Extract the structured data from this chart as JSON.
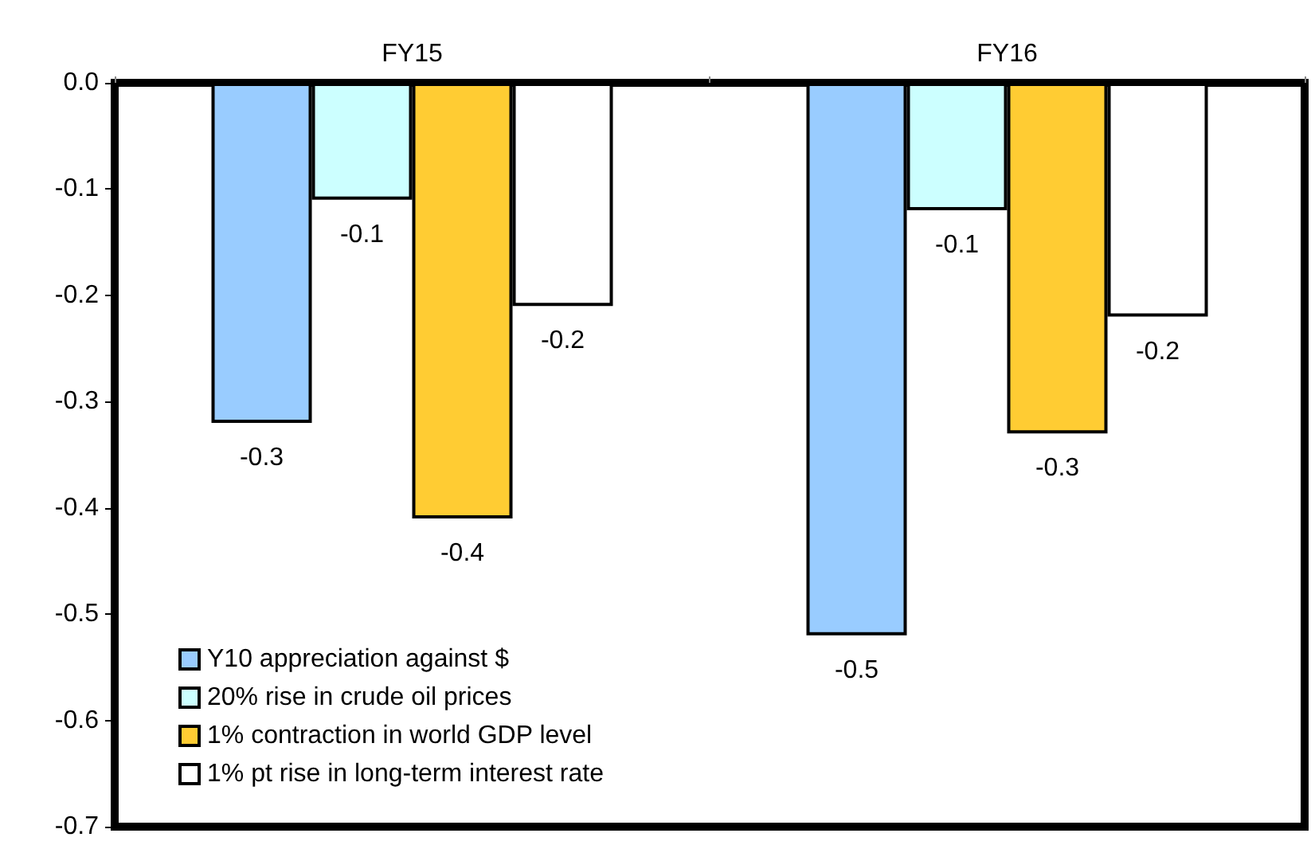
{
  "chart_data": {
    "type": "bar",
    "categories": [
      "FY15",
      "FY16"
    ],
    "series": [
      {
        "name": "Y10 appreciation against $",
        "color": "#99ccff",
        "values": [
          -0.32,
          -0.52
        ],
        "value_labels": [
          "-0.3",
          "-0.5"
        ]
      },
      {
        "name": "20% rise in crude oil prices",
        "color": "#ccffff",
        "values": [
          -0.11,
          -0.12
        ],
        "value_labels": [
          "-0.1",
          "-0.1"
        ]
      },
      {
        "name": "1% contraction in world GDP level",
        "color": "#ffcc33",
        "values": [
          -0.41,
          -0.33
        ],
        "value_labels": [
          "-0.4",
          "-0.3"
        ]
      },
      {
        "name": "1% pt rise in long-term interest rate",
        "color": "#ffffff",
        "values": [
          -0.21,
          -0.22
        ],
        "value_labels": [
          "-0.2",
          "-0.2"
        ]
      }
    ],
    "ylim": [
      -0.7,
      0
    ],
    "yticks": [
      {
        "value": 0,
        "label": "0.0"
      },
      {
        "value": -0.1,
        "label": "-0.1"
      },
      {
        "value": -0.2,
        "label": "-0.2"
      },
      {
        "value": -0.3,
        "label": "-0.3"
      },
      {
        "value": -0.4,
        "label": "-0.4"
      },
      {
        "value": -0.5,
        "label": "-0.5"
      },
      {
        "value": -0.6,
        "label": "-0.6"
      },
      {
        "value": -0.7,
        "label": "-0.7"
      }
    ],
    "grid": false,
    "legend": "bottom left"
  }
}
